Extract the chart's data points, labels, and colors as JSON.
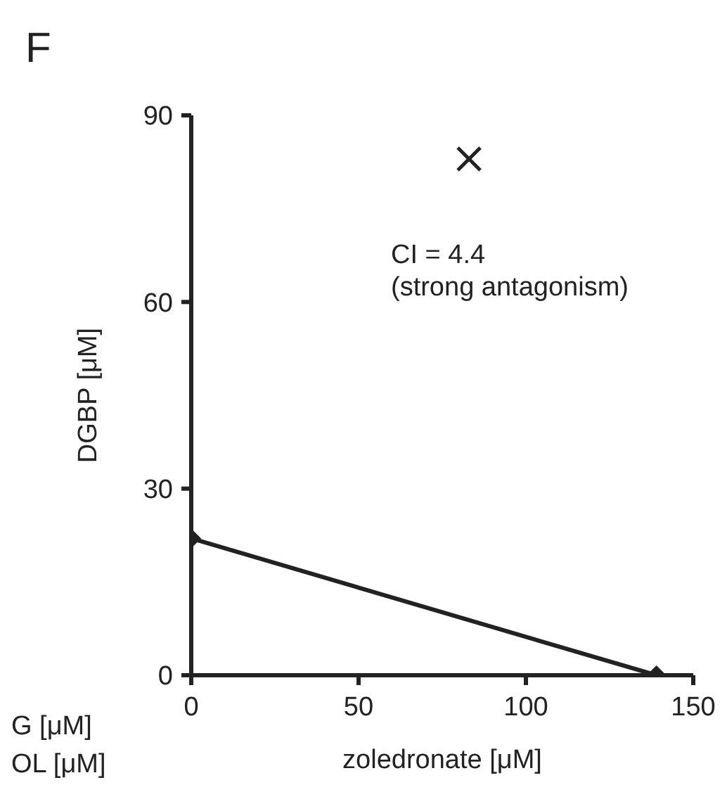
{
  "chart_data": {
    "type": "line",
    "title": "F",
    "xlabel": "zoledronate [μM]",
    "ylabel": "DGBP [μM]",
    "xlim": [
      0,
      150
    ],
    "xticks": [
      0,
      50,
      100,
      150
    ],
    "ylim": [
      0,
      90
    ],
    "yticks": [
      0,
      30,
      60,
      90
    ],
    "grid": false,
    "series": [
      {
        "color": "#222222",
        "x": [
          0,
          139
        ],
        "values": [
          22,
          0
        ],
        "marker": "diamond",
        "line_style": "solid"
      },
      {
        "type": "scatter",
        "color": "#222222",
        "x": [
          83
        ],
        "values": [
          83
        ],
        "marker": "cross"
      }
    ],
    "annotations": [
      "CI = 4.4",
      "(strong antagonism)",
      "G [μM]",
      "OL [μM]"
    ]
  }
}
